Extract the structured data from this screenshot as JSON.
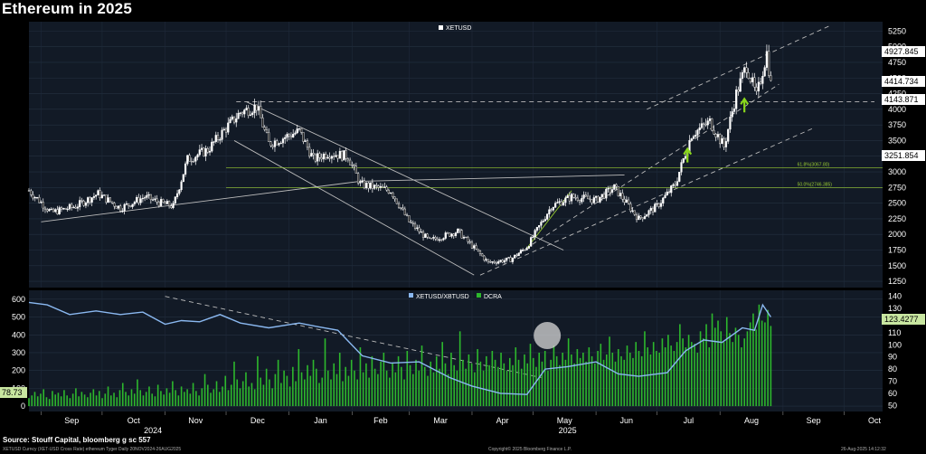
{
  "title": "Ethereum in 2025",
  "source": "Source: Stouff Capital, bloomberg g sc 557",
  "footer_left": "XETUSD Curncy (XET-USD Cross Rate) ethereum Tyger  Daily 20NOV2024-26AUG2025",
  "footer_center": "Copyright© 2025 Bloomberg Finance L.P.",
  "footer_right": "26-Aug-2025 14:12:32",
  "colors": {
    "background": "#000000",
    "panel": "#121a26",
    "price": "#ffffff",
    "ratio": "#8ab8f0",
    "volume": "#2db82d",
    "fib": "#9acd32",
    "arrow": "#8ad61c",
    "last_label_bg": "#ffffff",
    "cur_badge": "#c8e6a0"
  },
  "chart_data": [
    {
      "type": "line",
      "subtype": "candlestick",
      "legend": [
        "XETUSD"
      ],
      "y_ticks": [
        1250,
        1500,
        1750,
        2000,
        2250,
        2500,
        2750,
        3000,
        3250,
        3500,
        3750,
        4000,
        4250,
        4500,
        4750,
        5000,
        5250
      ],
      "ylim": [
        1150,
        5400
      ],
      "last_labels": [
        "4927.845",
        "4414.734",
        "4143.871",
        "3251.854"
      ],
      "fib_levels": [
        {
          "label": "61.8%(3067.80)",
          "value": 3067.8
        },
        {
          "label": "50.0%(2746.385)",
          "value": 2746.385
        }
      ],
      "series": [
        {
          "name": "XETUSD",
          "points": [
            [
              "2024-08-26",
              2700
            ],
            [
              "2024-09-06",
              2350
            ],
            [
              "2024-09-18",
              2450
            ],
            [
              "2024-09-29",
              2650
            ],
            [
              "2024-10-10",
              2420
            ],
            [
              "2024-10-22",
              2600
            ],
            [
              "2024-10-30",
              2500
            ],
            [
              "2024-11-05",
              2450
            ],
            [
              "2024-11-12",
              3200
            ],
            [
              "2024-11-22",
              3350
            ],
            [
              "2024-12-01",
              3700
            ],
            [
              "2024-12-08",
              3950
            ],
            [
              "2024-12-16",
              4050
            ],
            [
              "2024-12-22",
              3450
            ],
            [
              "2025-01-06",
              3650
            ],
            [
              "2025-01-13",
              3200
            ],
            [
              "2025-01-20",
              3300
            ],
            [
              "2025-01-30",
              3250
            ],
            [
              "2025-02-05",
              2800
            ],
            [
              "2025-02-20",
              2700
            ],
            [
              "2025-03-01",
              2200
            ],
            [
              "2025-03-11",
              1900
            ],
            [
              "2025-03-25",
              2050
            ],
            [
              "2025-04-09",
              1550
            ],
            [
              "2025-04-20",
              1600
            ],
            [
              "2025-04-28",
              1800
            ],
            [
              "2025-05-10",
              2450
            ],
            [
              "2025-05-20",
              2600
            ],
            [
              "2025-06-01",
              2550
            ],
            [
              "2025-06-10",
              2750
            ],
            [
              "2025-06-22",
              2250
            ],
            [
              "2025-07-01",
              2450
            ],
            [
              "2025-07-10",
              2800
            ],
            [
              "2025-07-18",
              3600
            ],
            [
              "2025-07-27",
              3800
            ],
            [
              "2025-08-03",
              3400
            ],
            [
              "2025-08-09",
              4250
            ],
            [
              "2025-08-14",
              4700
            ],
            [
              "2025-08-19",
              4200
            ],
            [
              "2025-08-24",
              4900
            ],
            [
              "2025-08-26",
              4400
            ]
          ]
        }
      ]
    },
    {
      "type": "bar",
      "legend": [
        "XETUSD/XBTUSD",
        "DCRA"
      ],
      "left_y_ticks": [
        0,
        100,
        200,
        300,
        400,
        500,
        600
      ],
      "right_y_ticks": [
        50,
        60,
        70,
        80,
        90,
        100,
        110,
        120,
        130,
        140
      ],
      "left_ylim": [
        -30,
        650
      ],
      "right_ylim": [
        45,
        145
      ],
      "last_labels": {
        "ratio": "123.4277",
        "volume": "78.73"
      },
      "ratio_series": {
        "name": "XETUSD/XBTUSD",
        "points": [
          [
            "2024-08-26",
            135
          ],
          [
            "2024-09-04",
            133
          ],
          [
            "2024-09-15",
            125
          ],
          [
            "2024-09-28",
            128
          ],
          [
            "2024-10-10",
            125
          ],
          [
            "2024-10-21",
            127
          ],
          [
            "2024-11-01",
            117
          ],
          [
            "2024-11-09",
            120
          ],
          [
            "2024-11-18",
            119
          ],
          [
            "2024-11-28",
            125
          ],
          [
            "2024-12-08",
            118
          ],
          [
            "2024-12-22",
            114
          ],
          [
            "2025-01-06",
            118
          ],
          [
            "2025-01-15",
            115
          ],
          [
            "2025-01-25",
            112
          ],
          [
            "2025-02-06",
            91
          ],
          [
            "2025-02-20",
            85
          ],
          [
            "2025-03-06",
            86
          ],
          [
            "2025-03-21",
            73
          ],
          [
            "2025-04-01",
            66
          ],
          [
            "2025-04-15",
            60
          ],
          [
            "2025-04-28",
            59
          ],
          [
            "2025-05-07",
            80
          ],
          [
            "2025-05-18",
            82
          ],
          [
            "2025-06-01",
            86
          ],
          [
            "2025-06-12",
            76
          ],
          [
            "2025-06-22",
            74
          ],
          [
            "2025-07-06",
            77
          ],
          [
            "2025-07-15",
            95
          ],
          [
            "2025-07-24",
            104
          ],
          [
            "2025-08-02",
            102
          ],
          [
            "2025-08-12",
            114
          ],
          [
            "2025-08-18",
            112
          ],
          [
            "2025-08-22",
            133
          ],
          [
            "2025-08-26",
            123
          ]
        ]
      },
      "volume_series": {
        "name": "DCRA",
        "values": [
          45,
          60,
          80,
          55,
          70,
          95,
          50,
          40,
          85,
          65,
          75,
          55,
          90,
          60,
          45,
          70,
          100,
          55,
          80,
          65,
          50,
          75,
          95,
          60,
          85,
          45,
          70,
          110,
          60,
          75,
          50,
          90,
          130,
          80,
          60,
          95,
          70,
          150,
          90,
          60,
          80,
          110,
          70,
          55,
          120,
          85,
          65,
          100,
          75,
          140,
          90,
          60,
          110,
          80,
          95,
          70,
          130,
          85,
          60,
          100,
          180,
          120,
          75,
          95,
          140,
          80,
          110,
          170,
          90,
          120,
          250,
          150,
          100,
          140,
          190,
          110,
          130,
          95,
          280,
          160,
          120,
          210,
          150,
          100,
          180,
          260,
          130,
          200,
          170,
          110,
          220,
          140,
          320,
          190,
          150,
          230,
          170,
          260,
          210,
          130,
          160,
          380,
          200,
          150,
          240,
          180,
          300,
          140,
          220,
          170,
          260,
          200,
          150,
          330,
          190,
          240,
          160,
          280,
          210,
          180,
          250,
          300,
          200,
          160,
          240,
          190,
          280,
          220,
          150,
          310,
          230,
          180,
          260,
          200,
          340,
          220,
          170,
          250,
          190,
          280,
          210,
          360,
          240,
          180,
          300,
          230,
          200,
          420,
          260,
          210,
          290,
          240,
          190,
          320,
          250,
          200,
          280,
          230,
          310,
          260,
          220,
          300,
          240,
          200,
          270,
          230,
          330,
          260,
          210,
          290,
          240,
          350,
          270,
          220,
          300,
          250,
          310,
          200,
          260,
          340,
          280,
          230,
          300,
          260,
          380,
          290,
          240,
          320,
          270,
          300,
          250,
          330,
          280,
          240,
          310,
          350,
          260,
          290,
          390,
          300,
          250,
          320,
          280,
          260,
          340,
          300,
          270,
          360,
          310,
          280,
          420,
          330,
          290,
          360,
          310,
          300,
          380,
          330,
          400,
          340,
          310,
          360,
          460,
          380,
          330,
          400,
          360,
          350,
          300,
          420,
          380,
          460,
          330,
          520,
          440,
          480,
          420,
          360,
          500,
          410,
          360,
          440,
          400,
          330,
          380,
          420,
          470,
          520,
          430,
          570,
          480,
          470,
          540,
          450
        ]
      },
      "highlight": {
        "date": "2025-05-08"
      }
    }
  ],
  "x_axis": {
    "months": [
      "Sep",
      "Oct",
      "Nov",
      "Dec",
      "Jan",
      "Feb",
      "Mar",
      "Apr",
      "May",
      "Jun",
      "Jul",
      "Aug",
      "Sep",
      "Oct"
    ],
    "years": [
      "2024",
      "2025"
    ]
  }
}
